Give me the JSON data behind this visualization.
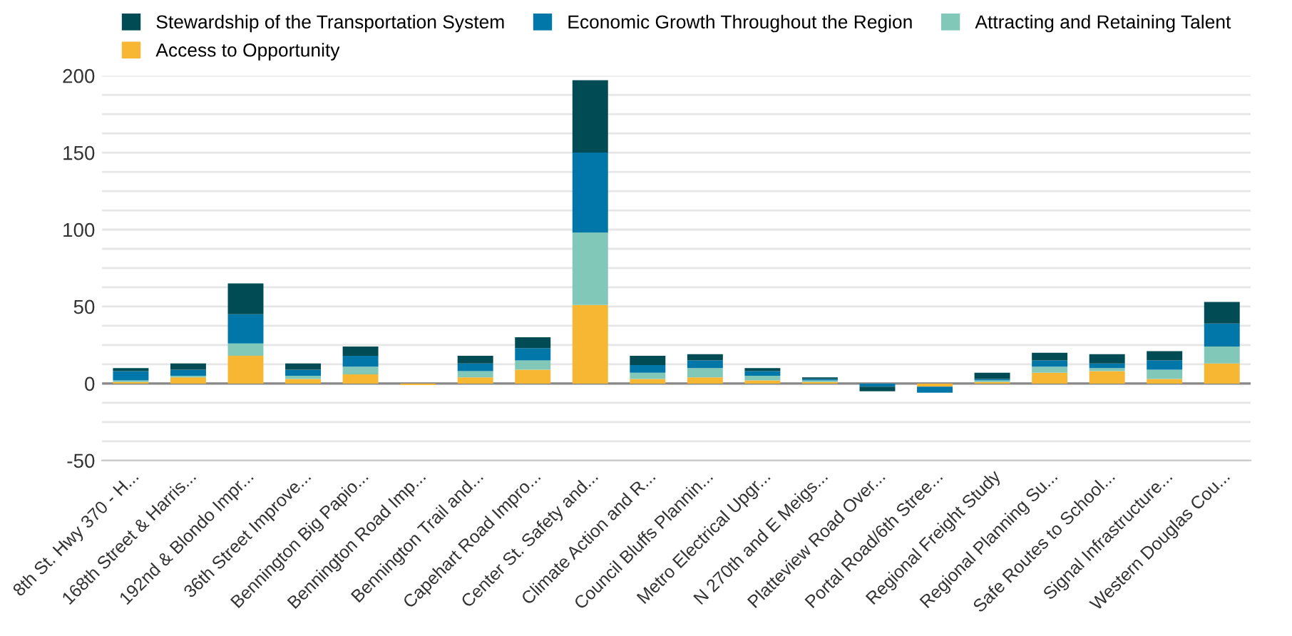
{
  "chart_data": {
    "type": "bar",
    "stacked": true,
    "categories": [
      "8th St. Hwy 370 - H...",
      "168th Street & Harris...",
      "192nd & Blondo Impr...",
      "36th Street Improve...",
      "Bennington Big Papio...",
      "Bennington Road Imp...",
      "Bennington Trail and...",
      "Capehart Road Impro...",
      "Center St. Safety and...",
      "Climate Action and R...",
      "Council Bluffs Plannin...",
      "Metro Electrical Upgr...",
      "N 270th and E Meigs...",
      "Platteview Road Over...",
      "Portal Road/6th Stree...",
      "Regional Freight Study",
      "Regional Planning Su...",
      "Safe Routes to School...",
      "Signal Infrastructure...",
      "Western Douglas Cou..."
    ],
    "series": [
      {
        "name": "Access to Opportunity",
        "color": "#f7b733",
        "values": [
          1,
          4,
          18,
          3,
          6,
          -1,
          4,
          9,
          51,
          3,
          4,
          2,
          1,
          0,
          -2,
          1,
          7,
          8,
          3,
          13
        ]
      },
      {
        "name": "Attracting and Retaining Talent",
        "color": "#82c8b8",
        "values": [
          1,
          1,
          8,
          2,
          5,
          0,
          4,
          6,
          47,
          4,
          6,
          3,
          1,
          0,
          0,
          1,
          4,
          2,
          6,
          11
        ]
      },
      {
        "name": "Economic Growth Throughout the Region",
        "color": "#0077a8",
        "values": [
          6,
          4,
          19,
          4,
          7,
          0,
          5,
          8,
          52,
          5,
          5,
          3,
          1,
          -2,
          -4,
          1,
          4,
          3,
          6,
          15
        ]
      },
      {
        "name": "Stewardship of the Transportation System",
        "color": "#004b54",
        "values": [
          2,
          4,
          20,
          4,
          6,
          0,
          5,
          7,
          47,
          6,
          4,
          2,
          1,
          -3,
          0,
          4,
          5,
          6,
          6,
          14
        ]
      }
    ],
    "ylim": [
      -50,
      200
    ],
    "yticks": [
      -50,
      {
        "value": -37.5,
        "label": null
      },
      {
        "value": -25,
        "label": null
      },
      {
        "value": -12.5,
        "label": null
      },
      0,
      {
        "value": 12.5,
        "label": null
      },
      {
        "value": 25,
        "label": null
      },
      {
        "value": 37.5,
        "label": null
      },
      50,
      {
        "value": 62.5,
        "label": null
      },
      {
        "value": 75,
        "label": null
      },
      {
        "value": 87.5,
        "label": null
      },
      100,
      {
        "value": 112.5,
        "label": null
      },
      {
        "value": 125,
        "label": null
      },
      {
        "value": 137.5,
        "label": null
      },
      150,
      {
        "value": 162.5,
        "label": null
      },
      {
        "value": 175,
        "label": null
      },
      {
        "value": 187.5,
        "label": null
      },
      200
    ],
    "grid": "y",
    "legend": "top"
  }
}
